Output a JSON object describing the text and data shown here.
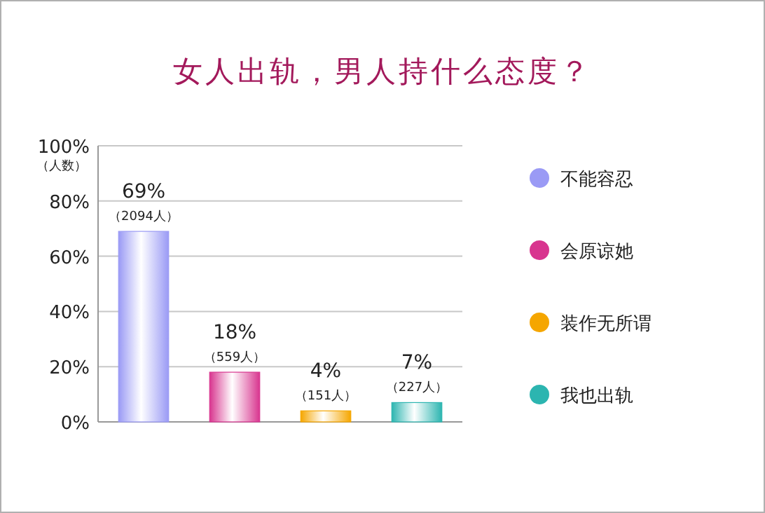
{
  "chart_data": {
    "type": "bar",
    "title": "女人出轨，男人持什么态度？",
    "ylabel": "（人数）",
    "categories": [
      null,
      null,
      null,
      null
    ],
    "series": [
      {
        "name": "不能容忍",
        "color": "#9a9af5",
        "values": [
          69,
          null,
          null,
          null
        ],
        "value_labels": [
          "69%",
          null,
          null,
          null
        ]
      },
      {
        "name": "会原谅她",
        "color": "#d8358f",
        "values": [
          null,
          18,
          null,
          null
        ],
        "value_labels": [
          null,
          "18%",
          null,
          null
        ]
      },
      {
        "name": "装作无所谓",
        "color": "#f5a600",
        "values": [
          null,
          null,
          4,
          null
        ],
        "value_labels": [
          null,
          null,
          "4%",
          null
        ]
      },
      {
        "name": "我也出轨",
        "color": "#2cb5b0",
        "values": [
          null,
          null,
          null,
          7
        ],
        "value_labels": [
          null,
          null,
          null,
          "7%"
        ]
      }
    ],
    "annotations": [
      {
        "text": "（2094人）",
        "y": 69
      },
      {
        "text": "（559人）",
        "y": 18
      },
      {
        "text": "（151人）",
        "y": 4
      },
      {
        "text": "（227人）",
        "y": 7
      }
    ],
    "ylim": [
      0,
      100
    ],
    "yticks": [
      {
        "value": 0,
        "label": "0%"
      },
      {
        "value": 20,
        "label": "20%"
      },
      {
        "value": 40,
        "label": "40%"
      },
      {
        "value": 60,
        "label": "60%"
      },
      {
        "value": 80,
        "label": "80%"
      },
      {
        "value": 100,
        "label": "100%"
      }
    ],
    "grid": "y",
    "legend": "right"
  }
}
